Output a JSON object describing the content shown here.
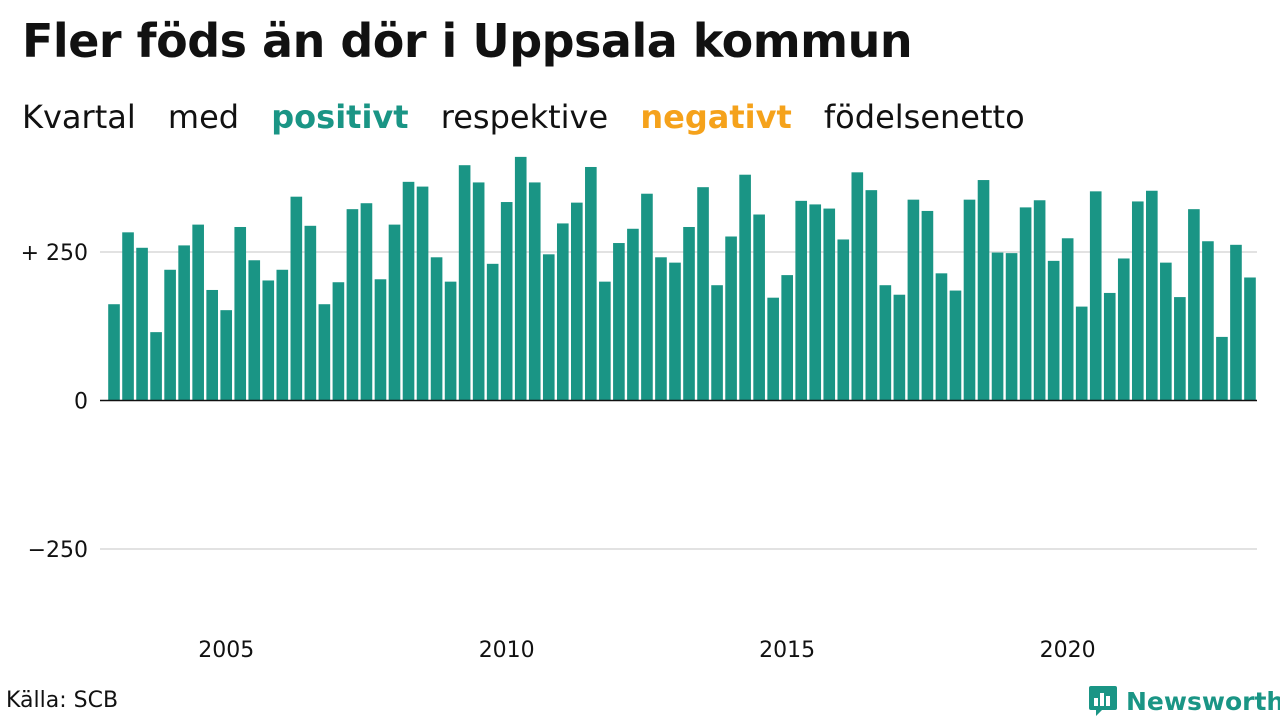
{
  "title": "Fler föds än dör i Uppsala kommun",
  "subtitle": {
    "part1": "Kvartal",
    "part2": "med",
    "positive": "positivt",
    "part3": "respektive",
    "negative": "negativt",
    "part4": "födelsenetto"
  },
  "colors": {
    "positive": "#1a9585",
    "negative": "#f5a21b",
    "grid": "#e2e2e2",
    "text": "#111111"
  },
  "source": "Källa: SCB",
  "brand": "Newsworthy",
  "chart_data": {
    "type": "bar",
    "ylim": [
      -420,
      430
    ],
    "yticks": [
      {
        "value": 250,
        "label": "+ 250"
      },
      {
        "value": 0,
        "label": "0"
      },
      {
        "value": -250,
        "label": "−250"
      }
    ],
    "xticks": [
      {
        "value": 2005,
        "label": "2005"
      },
      {
        "value": 2010,
        "label": "2010"
      },
      {
        "value": 2015,
        "label": "2015"
      },
      {
        "value": 2020,
        "label": "2020"
      }
    ],
    "x_start": 2003,
    "periods_per_year": 4,
    "values": [
      162,
      283,
      257,
      115,
      220,
      261,
      296,
      186,
      152,
      292,
      236,
      202,
      220,
      343,
      294,
      162,
      199,
      322,
      332,
      204,
      296,
      368,
      360,
      241,
      200,
      396,
      367,
      230,
      334,
      410,
      367,
      246,
      298,
      333,
      393,
      200,
      265,
      289,
      348,
      241,
      232,
      292,
      359,
      194,
      276,
      380,
      313,
      173,
      211,
      336,
      330,
      323,
      271,
      384,
      354,
      194,
      178,
      338,
      319,
      214,
      185,
      338,
      371,
      249,
      248,
      325,
      337,
      235,
      273,
      158,
      352,
      181,
      239,
      335,
      353,
      232,
      174,
      322,
      268,
      107,
      262,
      207
    ]
  }
}
